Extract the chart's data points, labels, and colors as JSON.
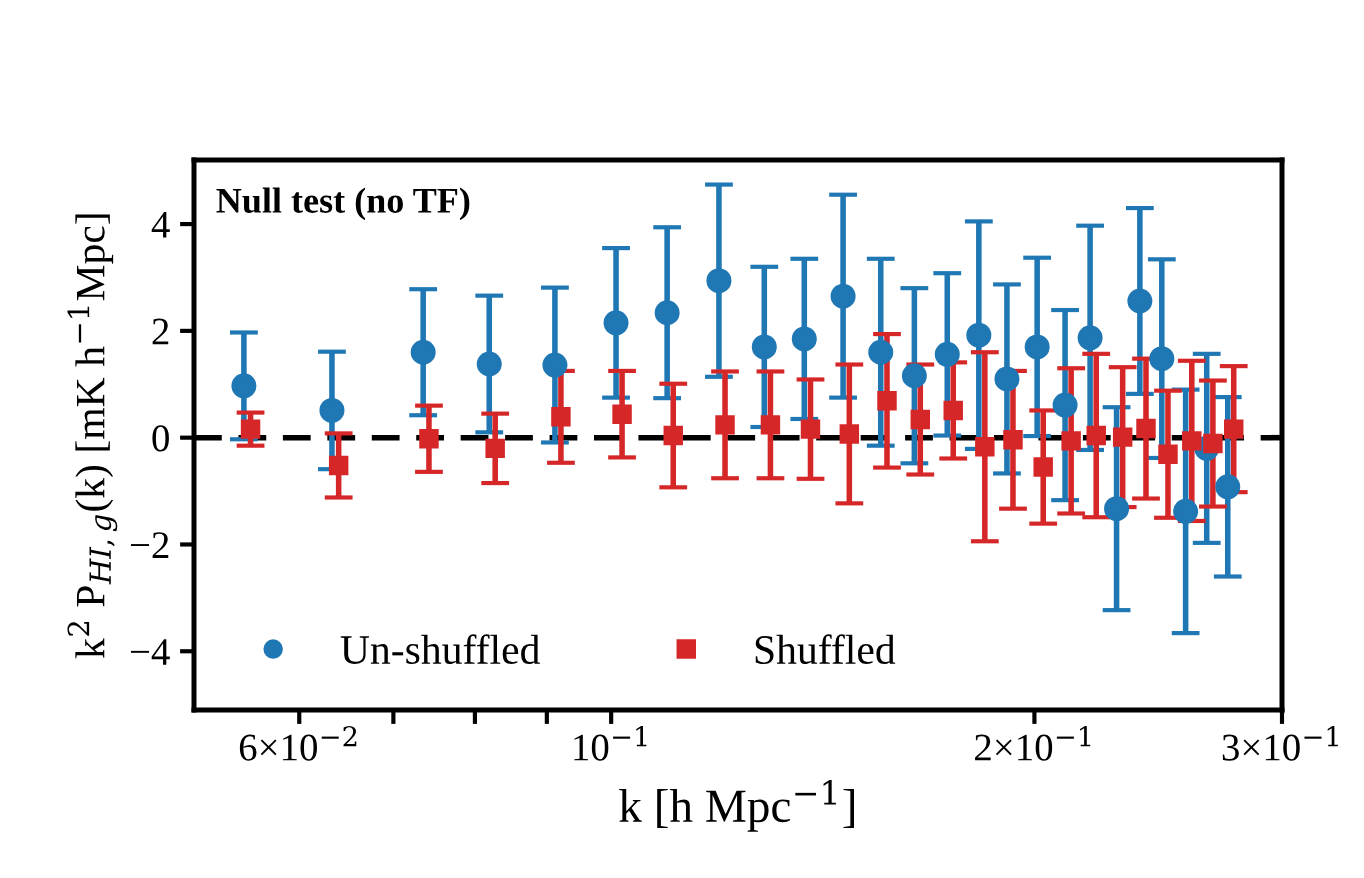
{
  "chart_data": {
    "type": "scatter",
    "title": "Null test (no TF)",
    "xlabel": "k [h Mpc$^{−1}$]",
    "ylabel": "k$^{2}$ P$_{HI,g}$(k) [mK h$^{−1}$Mpc]",
    "log": "x",
    "xlim": [
      0.0505,
      0.3
    ],
    "ylim": [
      -5.1,
      5.2
    ],
    "xticks": [
      {
        "value": 0.06,
        "label": "6×10$^{−2}$"
      },
      {
        "value": 0.07,
        "label": null
      },
      {
        "value": 0.08,
        "label": null
      },
      {
        "value": 0.09,
        "label": null
      },
      {
        "value": 0.1,
        "label": "10$^{−1}$"
      },
      {
        "value": 0.2,
        "label": "2×10$^{−1}$"
      },
      {
        "value": 0.3,
        "label": "3×10$^{−1}$"
      }
    ],
    "yticks": [
      {
        "value": -4,
        "label": "−4"
      },
      {
        "value": -2,
        "label": "−2"
      },
      0,
      2,
      4
    ],
    "grid": false,
    "legend": "bottom left",
    "ref_lines": [
      {
        "axis": "y",
        "value": 0,
        "color": "#000000",
        "line_style": "dashed"
      }
    ],
    "series": [
      {
        "name": "Un-shuffled",
        "color": "#1f77b4",
        "marker": "circle",
        "x": [
          0.0548,
          0.0633,
          0.0735,
          0.0819,
          0.0912,
          0.1008,
          0.1096,
          0.1193,
          0.1285,
          0.1372,
          0.1462,
          0.1555,
          0.1643,
          0.1734,
          0.1826,
          0.1912,
          0.2009,
          0.2103,
          0.2191,
          0.2288,
          0.2377,
          0.2464,
          0.2562,
          0.2652,
          0.2745
        ],
        "values": [
          0.97,
          0.51,
          1.6,
          1.38,
          1.36,
          2.15,
          2.34,
          2.94,
          1.7,
          1.85,
          2.65,
          1.6,
          1.16,
          1.56,
          1.92,
          1.1,
          1.7,
          0.61,
          1.87,
          -1.33,
          2.56,
          1.48,
          -1.38,
          -0.2,
          -0.92
        ],
        "errors": [
          1.0,
          1.1,
          1.18,
          1.28,
          1.45,
          1.4,
          1.6,
          1.8,
          1.5,
          1.5,
          1.9,
          1.75,
          1.64,
          1.52,
          2.13,
          1.77,
          1.67,
          1.78,
          2.1,
          1.9,
          1.74,
          1.86,
          2.28,
          1.77,
          1.68
        ]
      },
      {
        "name": "Shuffled",
        "color": "#d62728",
        "marker": "square",
        "x": [
          0.0554,
          0.064,
          0.0742,
          0.0827,
          0.0921,
          0.1018,
          0.1107,
          0.1205,
          0.1298,
          0.1386,
          0.1477,
          0.1571,
          0.1659,
          0.1751,
          0.1844,
          0.1931,
          0.2029,
          0.2124,
          0.2213,
          0.2311,
          0.2401,
          0.2489,
          0.2588,
          0.2679,
          0.2772
        ],
        "values": [
          0.16,
          -0.52,
          -0.02,
          -0.2,
          0.39,
          0.44,
          0.04,
          0.24,
          0.24,
          0.16,
          0.07,
          0.69,
          0.34,
          0.51,
          -0.17,
          -0.04,
          -0.55,
          -0.06,
          0.04,
          0.01,
          0.17,
          -0.31,
          -0.06,
          -0.11,
          0.16
        ],
        "errors": [
          0.31,
          0.6,
          0.62,
          0.65,
          0.86,
          0.81,
          0.97,
          1.0,
          1.0,
          0.93,
          1.3,
          1.25,
          1.03,
          0.9,
          1.77,
          1.29,
          1.06,
          1.36,
          1.53,
          1.31,
          1.31,
          1.19,
          1.5,
          1.18,
          1.18
        ]
      }
    ]
  }
}
